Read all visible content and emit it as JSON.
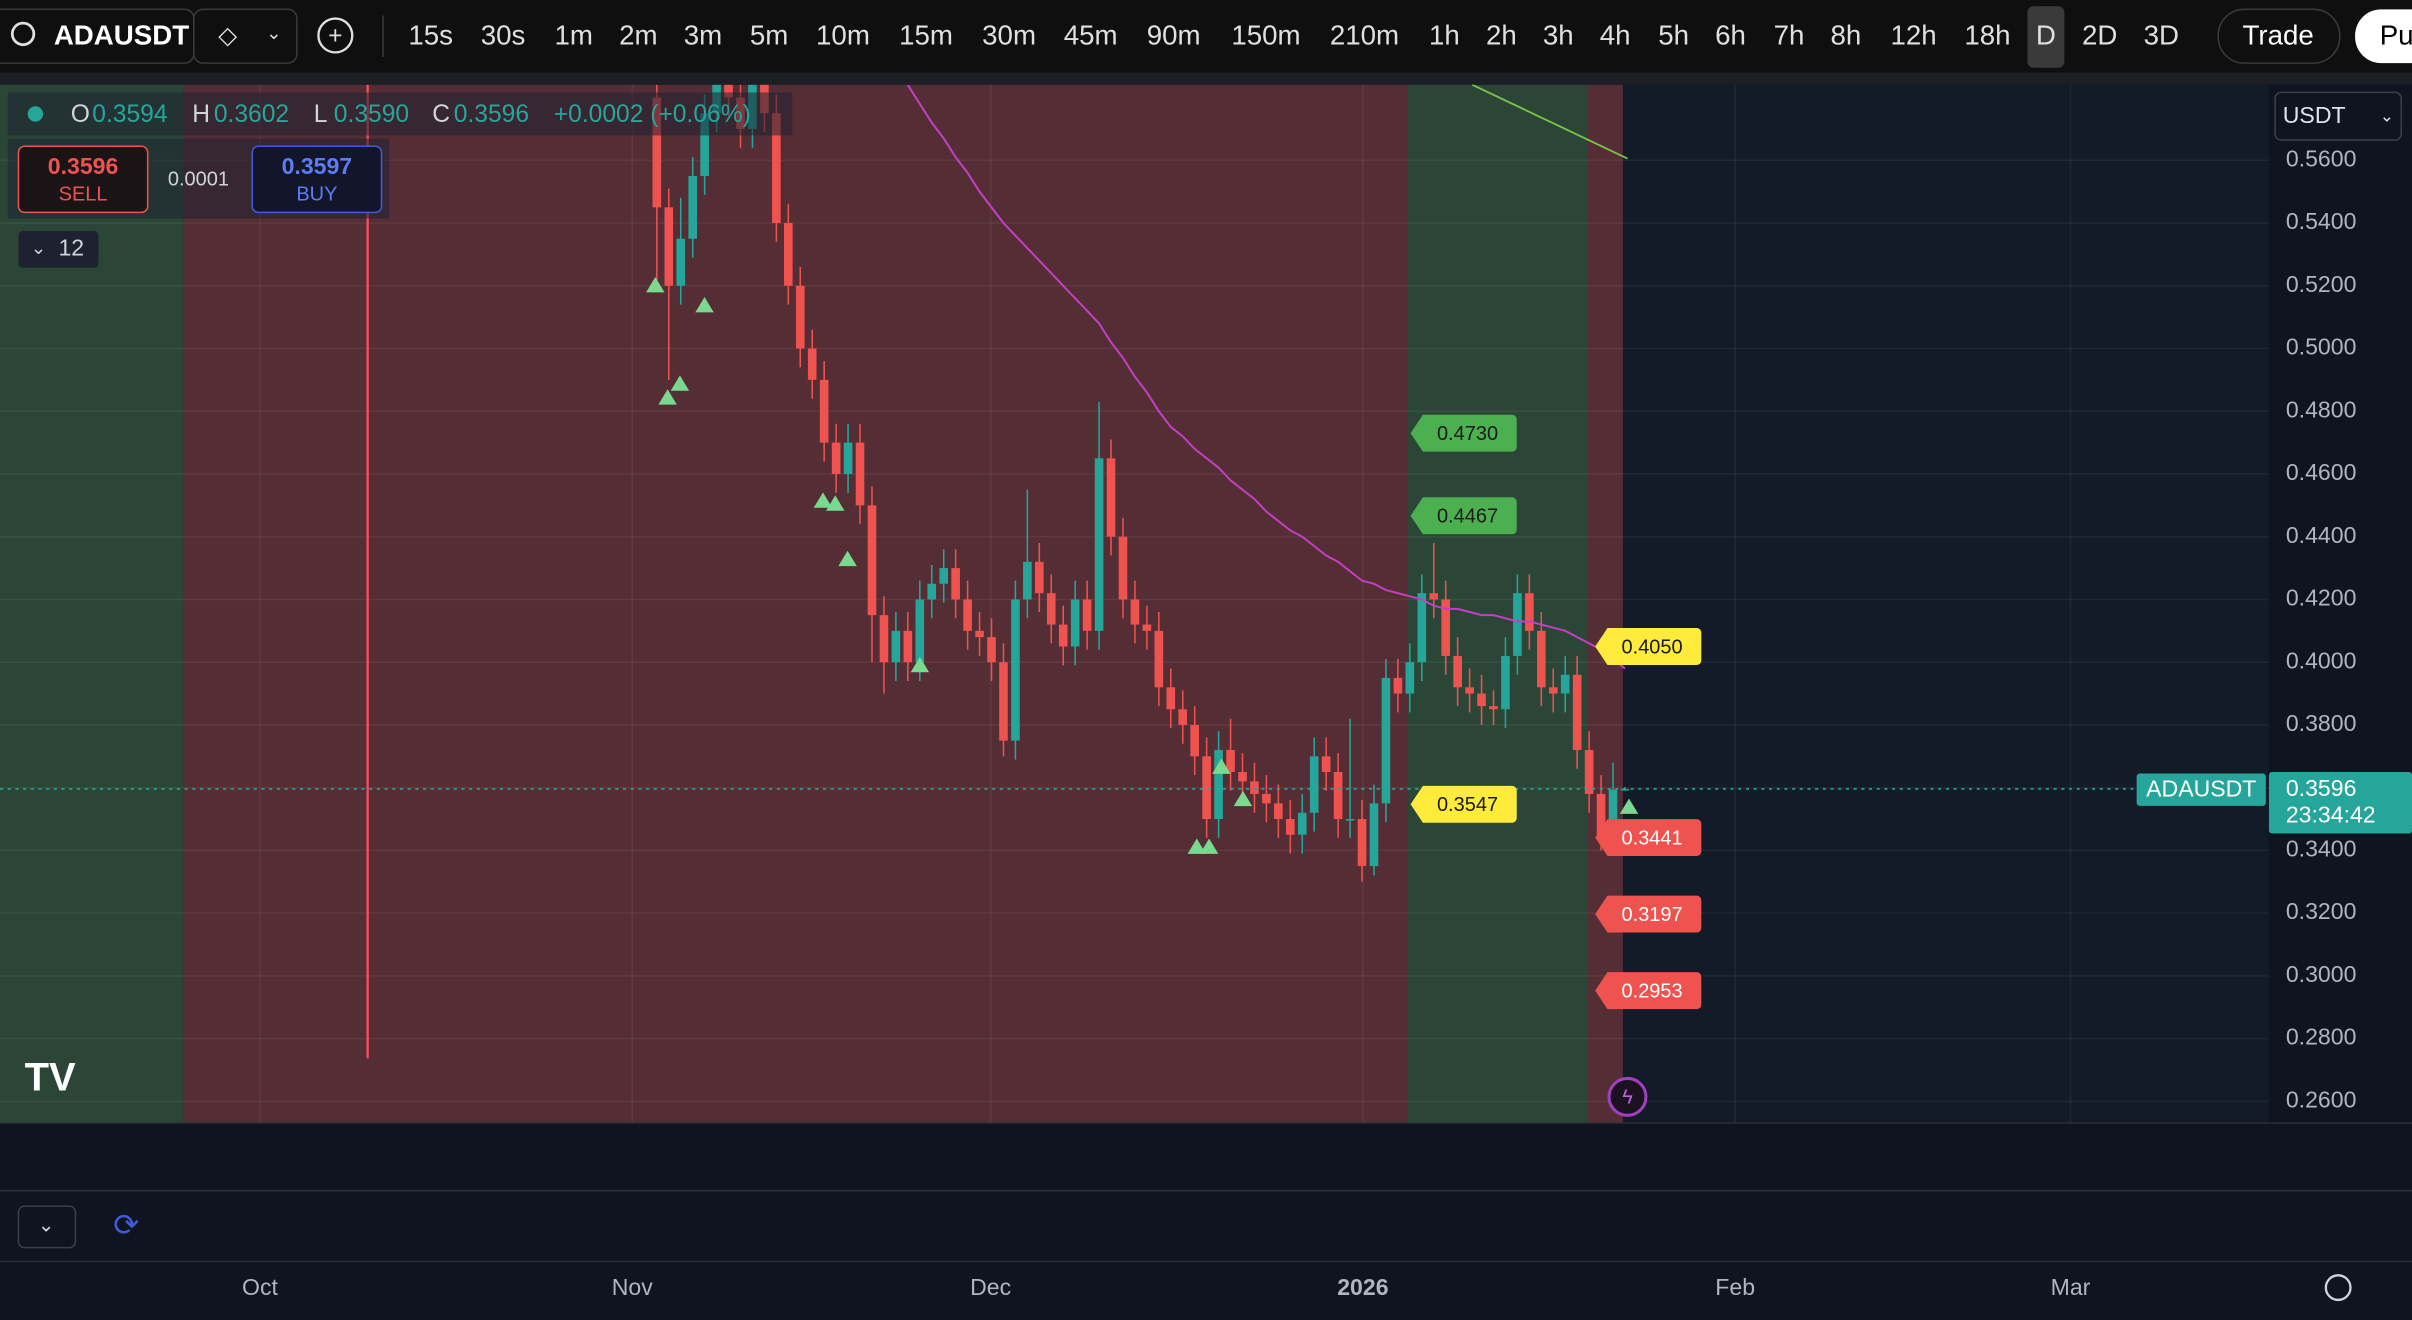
{
  "toolbar": {
    "symbol": "ADAUSDT",
    "intervals": [
      "15s",
      "30s",
      "1m",
      "2m",
      "3m",
      "5m",
      "10m",
      "15m",
      "30m",
      "45m",
      "90m",
      "150m",
      "210m",
      "1h",
      "2h",
      "3h",
      "4h",
      "5h",
      "6h",
      "7h",
      "8h",
      "12h",
      "18h",
      "D",
      "2D",
      "3D"
    ],
    "trade": "Trade",
    "publish": "Pu"
  },
  "legend": {
    "o": "O",
    "open": "0.3594",
    "h": "H",
    "high": "0.3602",
    "l": "L",
    "low": "0.3590",
    "c": "C",
    "close": "0.3596",
    "change": "+0.0002 (+0.06%)"
  },
  "order_panel": {
    "sell_price": "0.3596",
    "sell": "SELL",
    "spread": "0.0001",
    "buy_price": "0.3597",
    "buy": "BUY"
  },
  "indicators_count": "12",
  "currency": "USDT",
  "time_axis": [
    "Oct",
    "Nov",
    "Dec",
    "2026",
    "Feb",
    "Mar"
  ],
  "chart_data": {
    "type": "candlestick",
    "open": [
      0.58,
      0.545,
      0.52,
      0.535,
      0.555,
      0.575,
      0.59,
      0.58,
      0.57,
      0.585,
      0.575,
      0.54,
      0.52,
      0.5,
      0.49,
      0.47,
      0.46,
      0.47,
      0.45,
      0.415,
      0.4,
      0.41,
      0.4,
      0.42,
      0.425,
      0.43,
      0.42,
      0.41,
      0.408,
      0.4,
      0.375,
      0.42,
      0.432,
      0.422,
      0.412,
      0.405,
      0.42,
      0.41,
      0.465,
      0.44,
      0.42,
      0.412,
      0.41,
      0.392,
      0.385,
      0.38,
      0.37,
      0.35,
      0.372,
      0.365,
      0.362,
      0.358,
      0.355,
      0.35,
      0.345,
      0.352,
      0.37,
      0.365,
      0.35,
      0.35,
      0.335,
      0.355,
      0.395,
      0.39,
      0.4,
      0.422,
      0.42,
      0.402,
      0.392,
      0.39,
      0.386,
      0.385,
      0.402,
      0.422,
      0.41,
      0.392,
      0.39,
      0.396,
      0.372,
      0.358,
      0.345,
      0.3594
    ],
    "high": [
      0.586,
      0.551,
      0.548,
      0.561,
      0.581,
      0.596,
      0.596,
      0.586,
      0.591,
      0.591,
      0.581,
      0.546,
      0.526,
      0.506,
      0.496,
      0.476,
      0.476,
      0.476,
      0.456,
      0.421,
      0.416,
      0.416,
      0.426,
      0.431,
      0.436,
      0.436,
      0.426,
      0.416,
      0.414,
      0.406,
      0.426,
      0.455,
      0.438,
      0.428,
      0.418,
      0.426,
      0.426,
      0.483,
      0.471,
      0.446,
      0.426,
      0.418,
      0.416,
      0.398,
      0.391,
      0.386,
      0.376,
      0.378,
      0.382,
      0.371,
      0.368,
      0.364,
      0.361,
      0.356,
      0.358,
      0.376,
      0.376,
      0.371,
      0.382,
      0.356,
      0.361,
      0.401,
      0.401,
      0.406,
      0.428,
      0.438,
      0.426,
      0.408,
      0.398,
      0.396,
      0.391,
      0.408,
      0.428,
      0.428,
      0.416,
      0.398,
      0.402,
      0.402,
      0.378,
      0.364,
      0.368,
      0.3602
    ],
    "low": [
      0.52,
      0.49,
      0.514,
      0.529,
      0.549,
      0.569,
      0.574,
      0.564,
      0.564,
      0.569,
      0.534,
      0.514,
      0.494,
      0.484,
      0.464,
      0.454,
      0.454,
      0.444,
      0.4,
      0.39,
      0.394,
      0.394,
      0.394,
      0.414,
      0.419,
      0.414,
      0.404,
      0.402,
      0.394,
      0.37,
      0.369,
      0.414,
      0.416,
      0.406,
      0.399,
      0.399,
      0.404,
      0.404,
      0.434,
      0.414,
      0.406,
      0.404,
      0.386,
      0.379,
      0.374,
      0.364,
      0.344,
      0.344,
      0.359,
      0.356,
      0.352,
      0.349,
      0.344,
      0.339,
      0.339,
      0.346,
      0.359,
      0.344,
      0.344,
      0.33,
      0.332,
      0.349,
      0.384,
      0.384,
      0.394,
      0.414,
      0.396,
      0.386,
      0.384,
      0.38,
      0.38,
      0.379,
      0.396,
      0.404,
      0.386,
      0.384,
      0.384,
      0.366,
      0.352,
      0.34,
      0.339,
      0.359
    ],
    "close": [
      0.545,
      0.52,
      0.535,
      0.555,
      0.575,
      0.59,
      0.58,
      0.57,
      0.585,
      0.575,
      0.54,
      0.52,
      0.5,
      0.49,
      0.47,
      0.46,
      0.47,
      0.45,
      0.415,
      0.4,
      0.41,
      0.4,
      0.42,
      0.425,
      0.43,
      0.42,
      0.41,
      0.408,
      0.4,
      0.375,
      0.42,
      0.432,
      0.422,
      0.412,
      0.405,
      0.42,
      0.41,
      0.465,
      0.44,
      0.42,
      0.412,
      0.41,
      0.392,
      0.385,
      0.38,
      0.37,
      0.35,
      0.372,
      0.365,
      0.362,
      0.358,
      0.355,
      0.35,
      0.345,
      0.352,
      0.37,
      0.365,
      0.35,
      0.35,
      0.335,
      0.355,
      0.395,
      0.39,
      0.4,
      0.422,
      0.42,
      0.402,
      0.392,
      0.39,
      0.386,
      0.385,
      0.402,
      0.422,
      0.41,
      0.392,
      0.39,
      0.396,
      0.372,
      0.358,
      0.345,
      0.3594,
      0.3596
    ],
    "ma": [
      null,
      null,
      null,
      null,
      null,
      null,
      null,
      null,
      null,
      null,
      null,
      null,
      null,
      null,
      null,
      null,
      null,
      null,
      null,
      null,
      null,
      0.584,
      0.578,
      0.572,
      0.567,
      0.561,
      0.556,
      0.55,
      0.545,
      0.54,
      0.536,
      0.532,
      0.528,
      0.524,
      0.52,
      0.516,
      0.512,
      0.508,
      0.502,
      0.497,
      0.491,
      0.486,
      0.48,
      0.475,
      0.472,
      0.468,
      0.465,
      0.462,
      0.458,
      0.455,
      0.452,
      0.448,
      0.445,
      0.442,
      0.44,
      0.437,
      0.434,
      0.432,
      0.429,
      0.426,
      0.425,
      0.423,
      0.422,
      0.421,
      0.42,
      0.418,
      0.417,
      0.417,
      0.416,
      0.415,
      0.415,
      0.414,
      0.413,
      0.413,
      0.412,
      0.411,
      0.41,
      0.408,
      0.406,
      0.404,
      0.401,
      0.398
    ],
    "ma_color": "#c43fc4",
    "up_color": "#26a69a",
    "down_color": "#ef5350",
    "ylim": [
      0.2531,
      0.5841
    ],
    "yticks": [
      {
        "value": 0.26,
        "label": "0.2600"
      },
      {
        "value": 0.28,
        "label": "0.2800"
      },
      {
        "value": 0.3,
        "label": "0.3000"
      },
      {
        "value": 0.32,
        "label": "0.3200"
      },
      {
        "value": 0.34,
        "label": "0.3400"
      },
      {
        "value": 0.36,
        "label": "0.3600"
      },
      {
        "value": 0.38,
        "label": "0.3800"
      },
      {
        "value": 0.4,
        "label": "0.4000"
      },
      {
        "value": 0.42,
        "label": "0.4200"
      },
      {
        "value": 0.44,
        "label": "0.4400"
      },
      {
        "value": 0.46,
        "label": "0.4600"
      },
      {
        "value": 0.48,
        "label": "0.4800"
      },
      {
        "value": 0.5,
        "label": "0.5000"
      },
      {
        "value": 0.52,
        "label": "0.5200"
      },
      {
        "value": 0.54,
        "label": "0.5400"
      },
      {
        "value": 0.56,
        "label": "0.5600"
      }
    ],
    "levels": {
      "values": [
        0.473,
        0.4467,
        0.405,
        0.3547,
        0.3441,
        0.3197,
        0.2953
      ],
      "value_labels": [
        "0.4730",
        "0.4467",
        "0.4050",
        "0.3547",
        "0.3441",
        "0.3197",
        "0.2953"
      ],
      "colors": [
        "#4caf50",
        "#4caf50",
        "#ffeb3b",
        "#ffeb3b",
        "#ef5350",
        "#ef5350",
        "#ef5350"
      ]
    },
    "last_price": {
      "symbol": "ADAUSDT",
      "value": 0.3596,
      "label": "0.3596",
      "countdown": "23:34:42"
    }
  }
}
